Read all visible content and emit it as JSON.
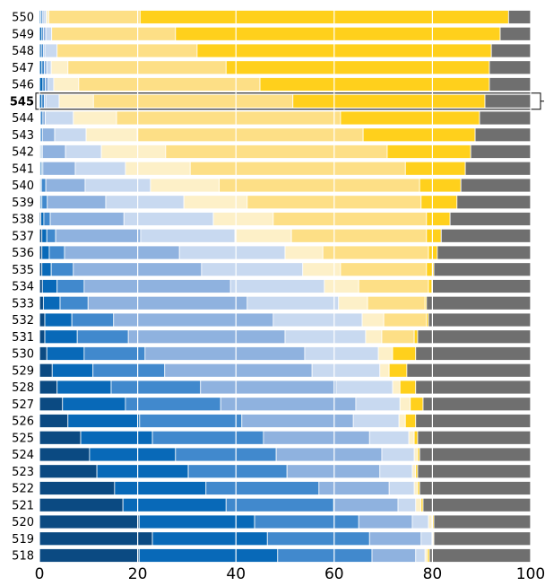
{
  "chart_data": {
    "type": "stacked_barh",
    "categories": [
      "518",
      "519",
      "520",
      "521",
      "522",
      "523",
      "524",
      "525",
      "526",
      "527",
      "528",
      "529",
      "530",
      "531",
      "532",
      "533",
      "534",
      "535",
      "536",
      "537",
      "538",
      "539",
      "540",
      "541",
      "542",
      "543",
      "544",
      "545",
      "546",
      "547",
      "548",
      "549",
      "550"
    ],
    "highlight": "545",
    "series": [
      {
        "color": "#0b4a82",
        "values": [
          20.3,
          23,
          20.3,
          17,
          15.3,
          11.7,
          10.2,
          8.4,
          5.8,
          4.7,
          3.6,
          2.6,
          1.5,
          1.1,
          1.1,
          0.8,
          0.6,
          0.5,
          0.5,
          0.5,
          0.3,
          0.2,
          0.2,
          0.2,
          0.2,
          0.1,
          0.1,
          0,
          0,
          0,
          0,
          0,
          0
        ]
      },
      {
        "color": "#0869b8",
        "values": [
          28.2,
          23.4,
          23.5,
          21,
          18.6,
          18.6,
          17.5,
          14.6,
          14.6,
          12.8,
          11,
          8.3,
          7.6,
          6.6,
          5.5,
          3.4,
          3,
          1.9,
          1.5,
          1,
          0.6,
          0.3,
          0.2,
          0.3,
          0.2,
          0.1,
          0.1,
          0.5,
          0.7,
          0.5,
          0.4,
          0.5,
          0.3
        ]
      },
      {
        "color": "#4189cd",
        "values": [
          19.2,
          20.8,
          21.2,
          21.9,
          23,
          20.1,
          20.5,
          22.6,
          20.8,
          19.4,
          18.2,
          14.6,
          12.4,
          10.4,
          8.5,
          5.7,
          5.5,
          4.5,
          3.1,
          1.8,
          1.3,
          1.1,
          0.9,
          0.2,
          0.2,
          0.4,
          0.5,
          0.5,
          0.5,
          0.5,
          0.4,
          0.3,
          0.3
        ]
      },
      {
        "color": "#8fb2df",
        "values": [
          8.9,
          10.5,
          10.9,
          13.1,
          14.3,
          18.9,
          21.5,
          21.6,
          22.7,
          27.5,
          27.6,
          30,
          32.5,
          31.9,
          32.5,
          32.4,
          29.8,
          26.1,
          23.4,
          17.3,
          15,
          11.9,
          8,
          6.6,
          4.7,
          2.5,
          0.5,
          0.3,
          0.6,
          0.5,
          0.3,
          0.5,
          0.3
        ]
      },
      {
        "color": "#c8d9f0",
        "values": [
          1.9,
          2.2,
          3.3,
          3.6,
          5.1,
          6.6,
          6.6,
          8,
          9.3,
          9,
          11.5,
          13.8,
          15,
          16.4,
          18.1,
          18.6,
          19.1,
          20.6,
          21.5,
          19.2,
          18.2,
          15.9,
          13.3,
          10.2,
          7.3,
          6.4,
          5.7,
          2.7,
          1.1,
          0.9,
          2.5,
          1.2,
          0.5
        ]
      },
      {
        "color": "#fdf0c8",
        "values": [
          0.5,
          0.4,
          0.7,
          1.1,
          0.7,
          0.7,
          0.7,
          1.1,
          1.3,
          2.1,
          1.5,
          1.9,
          2.9,
          3.3,
          4.4,
          5.9,
          7,
          7.7,
          7.7,
          11.5,
          12.2,
          12.9,
          14,
          13.2,
          13.1,
          10.4,
          8.8,
          7,
          5.1,
          3.4,
          0,
          0,
          0.5
        ]
      },
      {
        "color": "#fddf86",
        "values": [
          0,
          0,
          0,
          0,
          0,
          0,
          0,
          0,
          0,
          0,
          0,
          0,
          0,
          6.6,
          8.7,
          11.7,
          14.2,
          17.5,
          21.5,
          27.5,
          31.2,
          35.4,
          40.8,
          43.8,
          45.1,
          46,
          45.6,
          40.6,
          36.9,
          32.2,
          28.5,
          25.2,
          18.6
        ]
      },
      {
        "color": "#ffd01c",
        "values": [
          0.4,
          0,
          0.4,
          0.4,
          0.4,
          0.4,
          0.4,
          0.7,
          2.1,
          2.6,
          3.2,
          3.6,
          4.7,
          0.7,
          0.4,
          0.3,
          0.7,
          1.5,
          1.8,
          3,
          4.8,
          7.3,
          8.4,
          12.2,
          17,
          22.8,
          28.3,
          39.1,
          46.7,
          53.6,
          59.9,
          66.1,
          75
        ]
      },
      {
        "color": "#6f6f6f",
        "values": [
          20.6,
          19.7,
          19.7,
          21.9,
          22.6,
          23,
          22.6,
          23,
          23.4,
          21.9,
          23.4,
          25.2,
          23.4,
          23,
          20.8,
          21.2,
          20.1,
          19.7,
          19,
          18.2,
          16.4,
          15,
          14.2,
          13.3,
          12.2,
          11.3,
          10.4,
          9.3,
          8.4,
          8.4,
          8,
          6.2,
          4.5
        ]
      }
    ],
    "xlim": [
      0,
      100
    ],
    "xticks": [
      0,
      20,
      40,
      60,
      80,
      100
    ],
    "grid": true
  }
}
